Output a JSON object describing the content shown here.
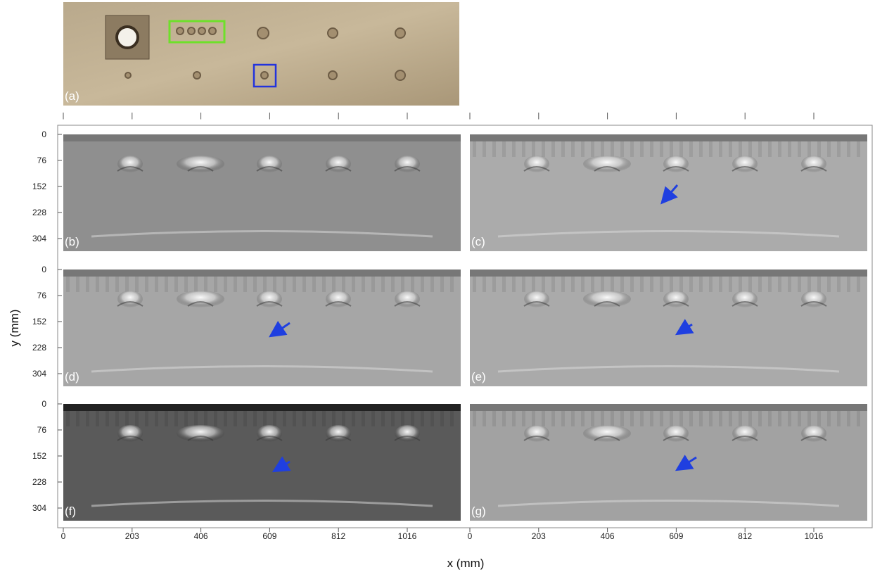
{
  "panels": [
    {
      "label": "(a)"
    },
    {
      "label": "(b)"
    },
    {
      "label": "(c)"
    },
    {
      "label": "(d)"
    },
    {
      "label": "(e)"
    },
    {
      "label": "(f)"
    },
    {
      "label": "(g)"
    }
  ],
  "x_axis": {
    "label": "x (mm)",
    "ticks": [
      "0",
      "203",
      "406",
      "609",
      "812",
      "1016"
    ]
  },
  "y_axis": {
    "label": "y (mm)",
    "ticks": [
      "0",
      "76",
      "152",
      "228",
      "304"
    ]
  }
}
